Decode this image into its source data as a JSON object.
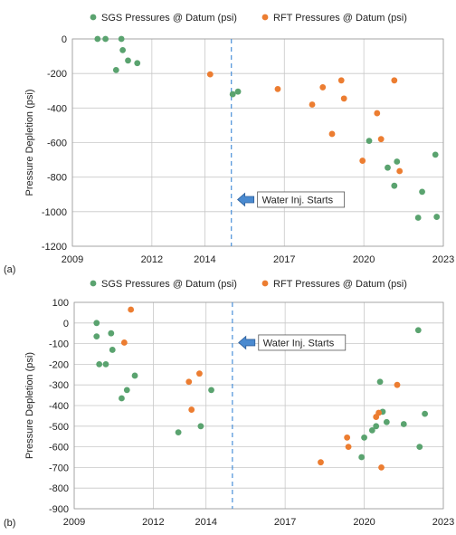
{
  "chart_data": [
    {
      "type": "scatter",
      "panel_label": "(a)",
      "ylabel": "Pressure Depletion (psi)",
      "xlim": [
        2009,
        2023
      ],
      "ylim": [
        -1200,
        0
      ],
      "x_ticks": [
        2009,
        2012,
        2014,
        2017,
        2020,
        2023
      ],
      "y_ticks": [
        0,
        -200,
        -400,
        -600,
        -800,
        -1000,
        -1200
      ],
      "grid": true,
      "legend_position": "top",
      "series": [
        {
          "name": "SGS Pressures @ Datum (psi)",
          "color": "#5aa36f",
          "points": [
            [
              2009.95,
              0
            ],
            [
              2010.25,
              0
            ],
            [
              2010.85,
              0
            ],
            [
              2010.9,
              -65
            ],
            [
              2011.1,
              -125
            ],
            [
              2010.65,
              -180
            ],
            [
              2011.45,
              -140
            ],
            [
              2015.05,
              -320
            ],
            [
              2015.25,
              -305
            ],
            [
              2020.2,
              -590
            ],
            [
              2020.9,
              -745
            ],
            [
              2021.25,
              -710
            ],
            [
              2021.15,
              -850
            ],
            [
              2022.2,
              -885
            ],
            [
              2022.05,
              -1035
            ],
            [
              2022.7,
              -670
            ],
            [
              2022.75,
              -1030
            ]
          ]
        },
        {
          "name": "RFT Pressures @ Datum (psi)",
          "color": "#ec7d31",
          "points": [
            [
              2014.2,
              -205
            ],
            [
              2016.75,
              -290
            ],
            [
              2018.05,
              -380
            ],
            [
              2018.45,
              -280
            ],
            [
              2018.8,
              -550
            ],
            [
              2019.15,
              -240
            ],
            [
              2019.25,
              -345
            ],
            [
              2019.95,
              -705
            ],
            [
              2020.5,
              -430
            ],
            [
              2020.65,
              -580
            ],
            [
              2021.15,
              -240
            ],
            [
              2021.35,
              -765
            ]
          ]
        }
      ],
      "vline": {
        "x": 15.0,
        "style": "dashed",
        "color": "#4a90d9"
      },
      "annotation": {
        "text": "Water Inj. Starts",
        "x": 15.1,
        "y": -930
      }
    },
    {
      "type": "scatter",
      "panel_label": "(b)",
      "ylabel": "Pressure Depletion (psi)",
      "xlim": [
        2009,
        2023
      ],
      "ylim": [
        -900,
        100
      ],
      "x_ticks": [
        2009,
        2012,
        2014,
        2017,
        2020,
        2023
      ],
      "y_ticks": [
        100,
        0,
        -100,
        -200,
        -300,
        -400,
        -500,
        -600,
        -700,
        -800,
        -900
      ],
      "grid": true,
      "legend_position": "top",
      "series": [
        {
          "name": "SGS Pressures @ Datum (psi)",
          "color": "#5aa36f",
          "points": [
            [
              2009.85,
              0
            ],
            [
              2009.85,
              -65
            ],
            [
              2009.95,
              -200
            ],
            [
              2010.2,
              -200
            ],
            [
              2010.4,
              -50
            ],
            [
              2010.45,
              -130
            ],
            [
              2011.3,
              -255
            ],
            [
              2011.0,
              -325
            ],
            [
              2010.8,
              -365
            ],
            [
              2012.95,
              -530
            ],
            [
              2013.8,
              -500
            ],
            [
              2014.2,
              -325
            ],
            [
              2019.9,
              -650
            ],
            [
              2020.0,
              -555
            ],
            [
              2020.3,
              -520
            ],
            [
              2020.45,
              -500
            ],
            [
              2020.6,
              -285
            ],
            [
              2020.7,
              -430
            ],
            [
              2020.85,
              -480
            ],
            [
              2021.5,
              -490
            ],
            [
              2022.05,
              -35
            ],
            [
              2022.1,
              -600
            ],
            [
              2022.3,
              -440
            ]
          ]
        },
        {
          "name": "RFT Pressures @ Datum (psi)",
          "color": "#ec7d31",
          "points": [
            [
              2010.9,
              -95
            ],
            [
              2011.15,
              65
            ],
            [
              2013.35,
              -285
            ],
            [
              2013.45,
              -420
            ],
            [
              2013.75,
              -245
            ],
            [
              2018.35,
              -675
            ],
            [
              2019.35,
              -555
            ],
            [
              2019.4,
              -600
            ],
            [
              2020.45,
              -455
            ],
            [
              2020.65,
              -700
            ],
            [
              2021.25,
              -300
            ],
            [
              2020.55,
              -435
            ]
          ]
        }
      ],
      "vline": {
        "x": 15.0,
        "style": "dashed",
        "color": "#4a90d9"
      },
      "annotation": {
        "text": "Water Inj. Starts",
        "x": 15.1,
        "y": -95
      }
    }
  ]
}
